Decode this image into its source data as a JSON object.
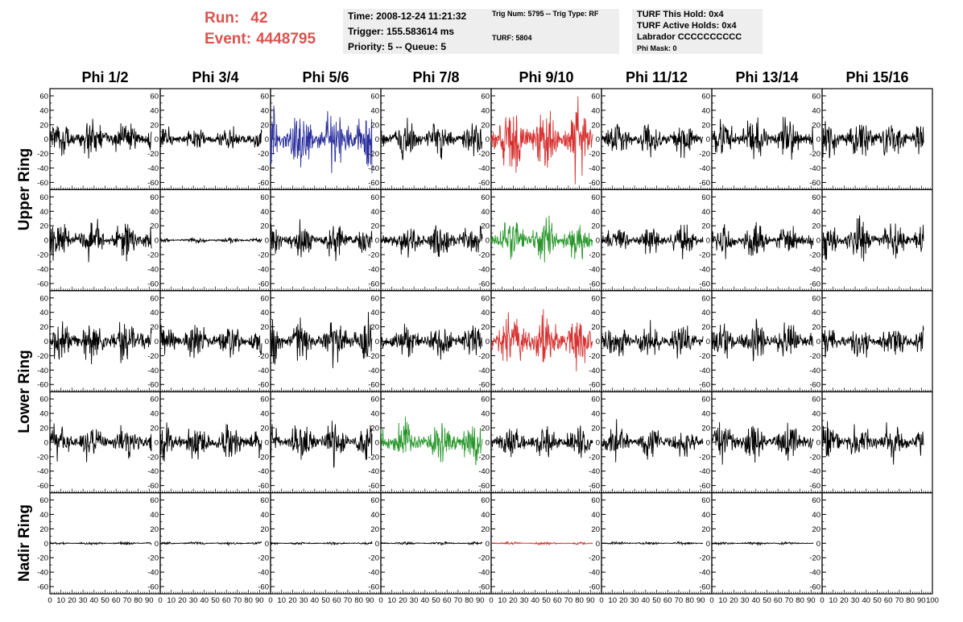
{
  "header": {
    "run_label": "Run:",
    "run_value": "42",
    "event_label": "Event:",
    "event_value": "4448795",
    "time": "Time: 2008-12-24 11:21:32",
    "trigger": "Trigger: 155.583614 ms",
    "priority_queue": "Priority: 5 -- Queue: 5",
    "trig_num_type": "Trig Num: 5795 -- Trig Type: RF",
    "turf": "TURF: 5804",
    "turf_this_hold": "TURF This Hold: 0x4",
    "turf_active_holds": "TURF Active Holds: 0x4",
    "labrador": "Labrador CCCCCCCCCC",
    "phi_mask": "Phi Mask: 0"
  },
  "colors": {
    "black": "#000000",
    "blue": "#2b2f9c",
    "red": "#d6302f",
    "green": "#27962a",
    "header_accent": "#d9534f",
    "box_bg": "#eeeeee"
  },
  "chart_data": {
    "type": "line",
    "columns": [
      "Phi 1/2",
      "Phi 3/4",
      "Phi 5/6",
      "Phi 7/8",
      "Phi 9/10",
      "Phi 11/12",
      "Phi 13/14",
      "Phi 15/16"
    ],
    "rows": [
      "Upper Ring",
      "Upper Ring",
      "Lower Ring",
      "Lower Ring",
      "Nadir Ring"
    ],
    "ring_labels": [
      {
        "label": "Upper Ring",
        "rows": [
          0,
          1
        ]
      },
      {
        "label": "Lower Ring",
        "rows": [
          2,
          3
        ]
      },
      {
        "label": "Nadir Ring",
        "rows": [
          4
        ]
      }
    ],
    "xlim": [
      0,
      100
    ],
    "ylim": [
      -70,
      70
    ],
    "x_ticks": [
      0,
      10,
      20,
      30,
      40,
      50,
      60,
      70,
      80,
      90
    ],
    "x_tick_last_panel": [
      0,
      10,
      20,
      30,
      40,
      50,
      60,
      70,
      80,
      90,
      100
    ],
    "y_ticks": [
      60,
      40,
      20,
      0,
      -20,
      -40,
      -60
    ],
    "grid": false,
    "legend": "none",
    "samples_x_max": 92,
    "waveform_amplitude": [
      [
        14,
        9,
        22,
        13,
        24,
        12,
        15,
        15
      ],
      [
        15,
        2,
        12,
        12,
        16,
        11,
        12,
        14
      ],
      [
        15,
        12,
        16,
        12,
        22,
        12,
        13,
        12
      ],
      [
        13,
        13,
        14,
        16,
        12,
        12,
        13,
        14
      ],
      [
        1,
        1,
        1,
        1,
        1,
        1,
        1,
        null
      ]
    ],
    "waveform_color": [
      [
        "black",
        "black",
        "blue",
        "black",
        "red",
        "black",
        "black",
        "black"
      ],
      [
        "black",
        "black",
        "black",
        "black",
        "green",
        "black",
        "black",
        "black"
      ],
      [
        "black",
        "black",
        "black",
        "black",
        "red",
        "black",
        "black",
        "black"
      ],
      [
        "black",
        "black",
        "black",
        "green",
        "black",
        "black",
        "black",
        "black"
      ],
      [
        "black",
        "black",
        "black",
        "black",
        "red",
        "black",
        "black",
        null
      ]
    ]
  }
}
